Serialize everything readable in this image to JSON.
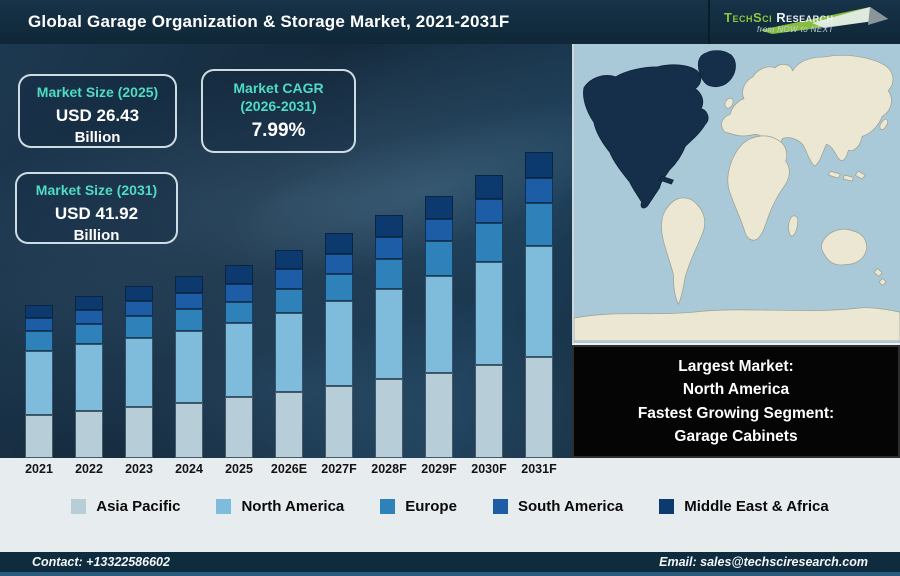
{
  "header": {
    "title": "Global Garage Organization & Storage Market, 2021-2031F",
    "logo": {
      "brand_primary": "TechSci",
      "brand_secondary": "Research",
      "tagline": "from NOW to NEXT",
      "brand_green": "#8dc63f"
    }
  },
  "cards": {
    "size_2025": {
      "title": "Market Size (2025)",
      "value": "USD 26.43",
      "unit": "Billion"
    },
    "cagr": {
      "title_line1": "Market CAGR",
      "title_line2": "(2026-2031)",
      "value": "7.99%"
    },
    "size_2031": {
      "title": "Market Size (2031)",
      "value": "USD 41.92",
      "unit": "Billion"
    }
  },
  "info_box": {
    "lines": [
      "Largest Market:",
      "North America",
      "Fastest Growing Segment:",
      "Garage Cabinets"
    ]
  },
  "map": {
    "ocean_color": "#a9c8d8",
    "land_color": "#ece7d2",
    "land_outline": "#9aa08e",
    "highlight_color": "#152e4a",
    "highlight_region": "North America"
  },
  "chart_data": {
    "type": "bar",
    "stacked": true,
    "title": "Global Garage Organization & Storage Market, 2021-2031F",
    "unit": "USD Billion",
    "legend_position": "bottom",
    "categories": [
      "2021",
      "2022",
      "2023",
      "2024",
      "2025",
      "2026E",
      "2027F",
      "2028F",
      "2029F",
      "2030F",
      "2031F"
    ],
    "series": [
      {
        "name": "Asia Pacific",
        "color": "#b7cdd7",
        "values": [
          5.9,
          6.4,
          7.0,
          7.6,
          8.4,
          9.1,
          9.9,
          10.8,
          11.7,
          12.7,
          13.9
        ]
      },
      {
        "name": "North America",
        "color": "#7fbcdc",
        "values": [
          8.8,
          9.2,
          9.5,
          9.8,
          10.1,
          10.8,
          11.6,
          12.4,
          13.3,
          14.2,
          15.2
        ]
      },
      {
        "name": "Europe",
        "color": "#2f81ba",
        "values": [
          2.7,
          2.8,
          2.9,
          3.0,
          2.9,
          3.3,
          3.7,
          4.1,
          4.7,
          5.3,
          5.8
        ]
      },
      {
        "name": "South America",
        "color": "#1d5da5",
        "values": [
          1.75,
          1.9,
          2.05,
          2.25,
          2.5,
          2.65,
          2.8,
          2.95,
          3.1,
          3.3,
          3.5
        ]
      },
      {
        "name": "Middle East & Africa",
        "color": "#0d3a6e",
        "values": [
          1.75,
          1.9,
          2.05,
          2.25,
          2.53,
          2.69,
          2.82,
          3.03,
          3.14,
          3.31,
          3.52
        ]
      }
    ],
    "totals": [
      20.9,
      22.2,
      23.5,
      24.9,
      26.43,
      28.54,
      30.82,
      33.28,
      35.94,
      38.81,
      41.92
    ],
    "annotations": {
      "market_size_2025": "USD 26.43 Billion",
      "market_cagr_2026_2031": "7.99%",
      "market_size_2031": "USD 41.92 Billion"
    }
  },
  "footer": {
    "contact": "Contact: +13322586602",
    "email": "Email: sales@techsciresearch.com"
  }
}
